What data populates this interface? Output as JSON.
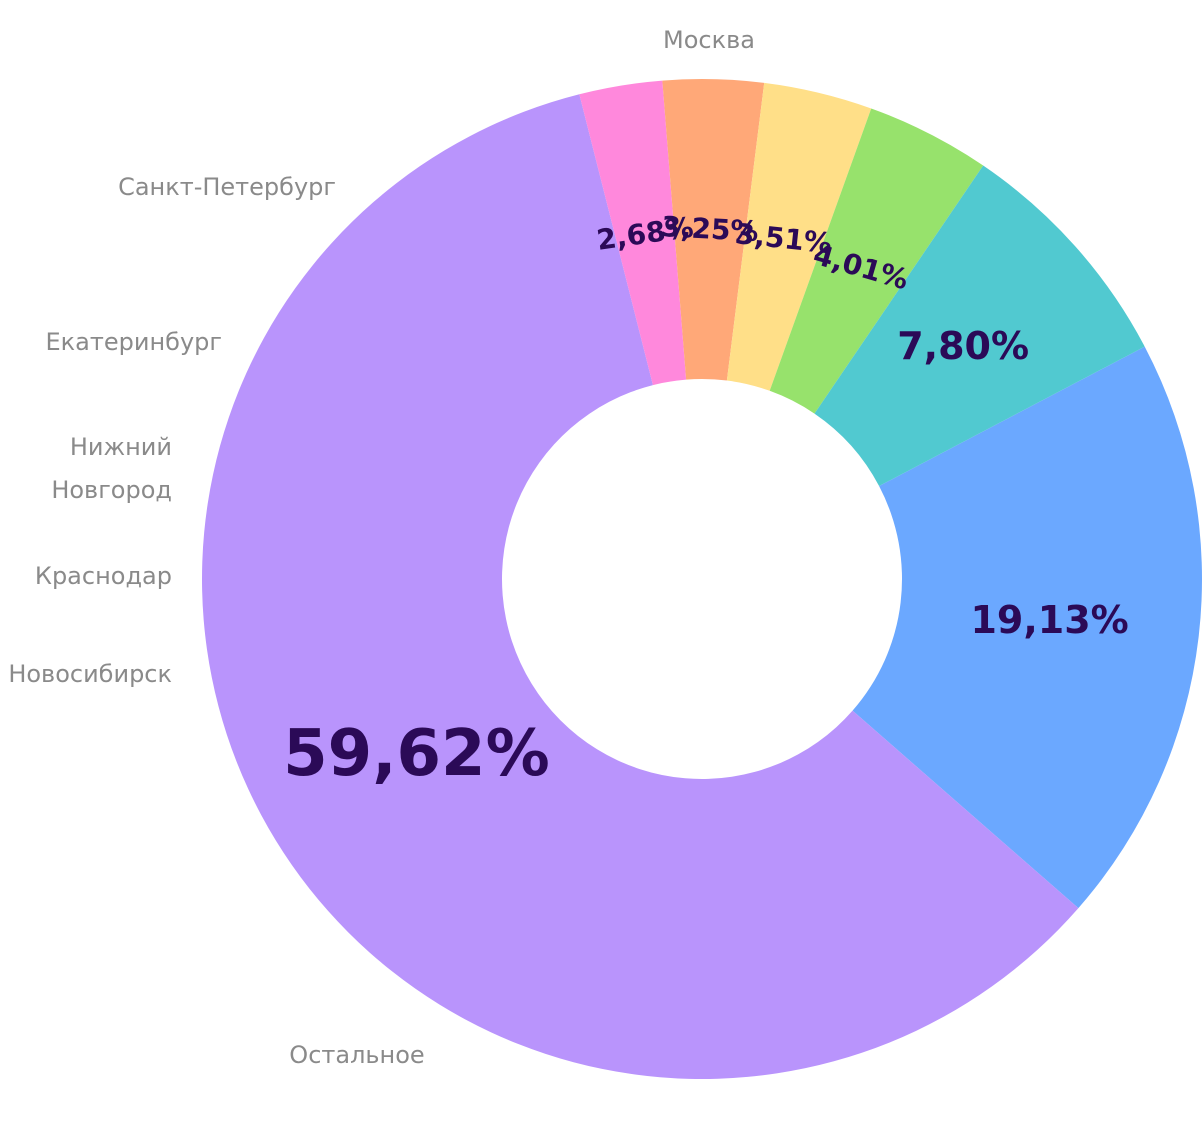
{
  "chart_data": {
    "type": "pie",
    "donut": true,
    "title": "",
    "slices": [
      {
        "name": "Москва",
        "value": 19.13,
        "label": "19,13%",
        "color": "#6ba8ff"
      },
      {
        "name": "Остальное",
        "value": 59.62,
        "label": "59,62%",
        "color": "#b994fc"
      },
      {
        "name": "Новосибирск",
        "value": 2.68,
        "label": "2,68%",
        "color": "#ff88dc"
      },
      {
        "name": "Краснодар",
        "value": 3.25,
        "label": "3,25%",
        "color": "#ffa878"
      },
      {
        "name": "Нижний\nНовгород",
        "value": 3.51,
        "label": "3,51%",
        "color": "#ffdf88"
      },
      {
        "name": "Екатеринбург",
        "value": 4.01,
        "label": "4,01%",
        "color": "#97e26c"
      },
      {
        "name": "Санкт-Петербург",
        "value": 7.8,
        "label": "7,80%",
        "color": "#51c9d0"
      }
    ],
    "label_color": "#2b0a57",
    "category_label_color": "#8a8a8a"
  }
}
